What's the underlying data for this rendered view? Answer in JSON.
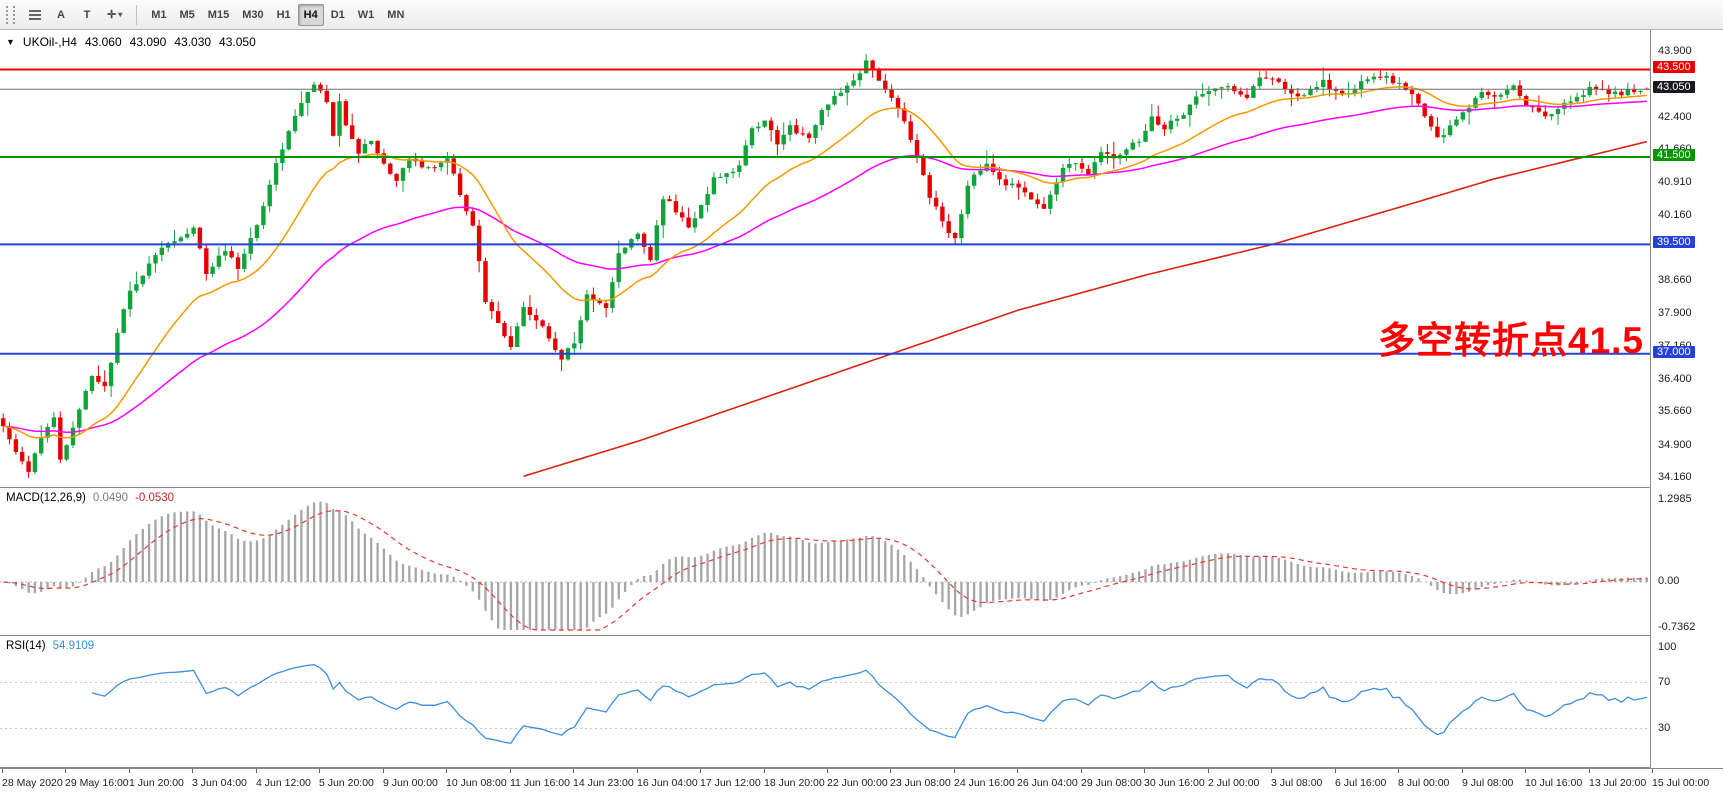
{
  "toolbar": {
    "a_label": "A",
    "t_label": "T",
    "crosshair_glyph": "✛",
    "caret_glyph": "▾",
    "timeframes": [
      "M1",
      "M5",
      "M15",
      "M30",
      "H1",
      "H4",
      "D1",
      "W1",
      "MN"
    ],
    "active_timeframe": "H4"
  },
  "chart": {
    "one_click_arrow": "▼",
    "symbol_title": "UKOil-,H4",
    "quote_open": "43.060",
    "quote_high": "43.090",
    "quote_low": "43.030",
    "quote_close": "43.050"
  },
  "annotation": {
    "text": "多空转折点41.5",
    "color": "#ff0000"
  },
  "levels": [
    {
      "price": 43.5,
      "label": "43.500",
      "color": "#ff0000",
      "width": 2,
      "badge_bg": "#e60000"
    },
    {
      "price": 43.05,
      "label": "43.050",
      "color": "#6e6e6e",
      "width": 1,
      "badge_bg": "#181a20"
    },
    {
      "price": 41.5,
      "label": "41.500",
      "color": "#009600",
      "width": 2,
      "badge_bg": "#009600"
    },
    {
      "price": 39.5,
      "label": "39.500",
      "color": "#2442d8",
      "width": 2,
      "badge_bg": "#2442d8"
    },
    {
      "price": 37.0,
      "label": "37.000",
      "color": "#2442d8",
      "width": 2,
      "badge_bg": "#2442d8"
    }
  ],
  "price_axis_ticks": [
    "43.900",
    "42.400",
    "41.660",
    "40.910",
    "40.160",
    "38.660",
    "37.900",
    "37.160",
    "36.400",
    "35.660",
    "34.900",
    "34.160"
  ],
  "macd": {
    "label": "MACD(12,26,9)",
    "value_main": "0.0490",
    "value_signal": "-0.0530",
    "axis": [
      "1.2985",
      "0.00",
      "-0.7362"
    ]
  },
  "rsi": {
    "label": "RSI(14)",
    "value": "54.9109",
    "axis": [
      "100",
      "70",
      "30"
    ],
    "levels": [
      70,
      30
    ]
  },
  "time_axis_labels": [
    "28 May 2020",
    "29 May 16:00",
    "1 Jun 20:00",
    "3 Jun 04:00",
    "4 Jun 12:00",
    "5 Jun 20:00",
    "9 Jun 00:00",
    "10 Jun 08:00",
    "11 Jun 16:00",
    "14 Jun 23:00",
    "16 Jun 04:00",
    "17 Jun 12:00",
    "18 Jun 20:00",
    "22 Jun 00:00",
    "23 Jun 08:00",
    "24 Jun 16:00",
    "26 Jun 04:00",
    "29 Jun 08:00",
    "30 Jun 16:00",
    "2 Jul 00:00",
    "3 Jul 08:00",
    "6 Jul 16:00",
    "8 Jul 00:00",
    "9 Jul 08:00",
    "10 Jul 16:00",
    "13 Jul 20:00",
    "15 Jul 00:00"
  ],
  "chart_data": {
    "type": "candlestick",
    "symbol": "UKOil-",
    "timeframe": "H4",
    "bars": 260,
    "price_range": [
      34.16,
      43.9
    ],
    "current_bar_ohlc": [
      43.06,
      43.09,
      43.03,
      43.05
    ],
    "close_anchors": [
      [
        0,
        35.3
      ],
      [
        2,
        34.8
      ],
      [
        4,
        34.35
      ],
      [
        6,
        35.1
      ],
      [
        8,
        35.6
      ],
      [
        9,
        34.6
      ],
      [
        11,
        35.3
      ],
      [
        14,
        36.5
      ],
      [
        16,
        36.2
      ],
      [
        18,
        37.5
      ],
      [
        20,
        38.4
      ],
      [
        24,
        39.3
      ],
      [
        28,
        39.7
      ],
      [
        30,
        39.9
      ],
      [
        32,
        38.8
      ],
      [
        35,
        39.4
      ],
      [
        37,
        38.9
      ],
      [
        40,
        40.0
      ],
      [
        43,
        41.3
      ],
      [
        46,
        42.4
      ],
      [
        49,
        43.2
      ],
      [
        51,
        42.8
      ],
      [
        52,
        42.0
      ],
      [
        53,
        42.8
      ],
      [
        54,
        42.2
      ],
      [
        56,
        41.6
      ],
      [
        58,
        41.9
      ],
      [
        60,
        41.3
      ],
      [
        62,
        40.9
      ],
      [
        64,
        41.5
      ],
      [
        67,
        41.2
      ],
      [
        70,
        41.5
      ],
      [
        72,
        40.6
      ],
      [
        74,
        39.9
      ],
      [
        76,
        38.2
      ],
      [
        80,
        37.2
      ],
      [
        82,
        38.1
      ],
      [
        86,
        37.4
      ],
      [
        88,
        36.9
      ],
      [
        90,
        37.3
      ],
      [
        92,
        38.3
      ],
      [
        95,
        38.1
      ],
      [
        97,
        39.3
      ],
      [
        100,
        39.8
      ],
      [
        102,
        39.2
      ],
      [
        104,
        40.6
      ],
      [
        106,
        40.3
      ],
      [
        108,
        39.9
      ],
      [
        110,
        40.4
      ],
      [
        112,
        41.0
      ],
      [
        116,
        41.3
      ],
      [
        118,
        42.1
      ],
      [
        120,
        42.3
      ],
      [
        122,
        41.8
      ],
      [
        124,
        42.2
      ],
      [
        127,
        41.9
      ],
      [
        129,
        42.6
      ],
      [
        132,
        43.0
      ],
      [
        135,
        43.4
      ],
      [
        136,
        43.7
      ],
      [
        139,
        43.1
      ],
      [
        142,
        42.3
      ],
      [
        144,
        41.5
      ],
      [
        146,
        40.6
      ],
      [
        148,
        40.0
      ],
      [
        150,
        39.6
      ],
      [
        152,
        40.9
      ],
      [
        155,
        41.4
      ],
      [
        157,
        41.0
      ],
      [
        162,
        40.6
      ],
      [
        164,
        40.35
      ],
      [
        167,
        41.2
      ],
      [
        169,
        41.4
      ],
      [
        171,
        41.1
      ],
      [
        173,
        41.6
      ],
      [
        176,
        41.5
      ],
      [
        179,
        41.9
      ],
      [
        181,
        42.4
      ],
      [
        183,
        42.2
      ],
      [
        186,
        42.5
      ],
      [
        188,
        42.9
      ],
      [
        190,
        43.0
      ],
      [
        193,
        43.1
      ],
      [
        196,
        42.9
      ],
      [
        198,
        43.35
      ],
      [
        201,
        43.2
      ],
      [
        203,
        42.9
      ],
      [
        206,
        43.0
      ],
      [
        208,
        43.2
      ],
      [
        211,
        42.9
      ],
      [
        213,
        43.1
      ],
      [
        215,
        43.3
      ],
      [
        218,
        43.3
      ],
      [
        221,
        43.1
      ],
      [
        223,
        42.7
      ],
      [
        226,
        41.9
      ],
      [
        228,
        42.2
      ],
      [
        231,
        42.6
      ],
      [
        233,
        43.0
      ],
      [
        236,
        42.9
      ],
      [
        238,
        43.1
      ],
      [
        240,
        42.7
      ],
      [
        243,
        42.4
      ],
      [
        245,
        42.6
      ],
      [
        248,
        42.9
      ],
      [
        251,
        43.1
      ],
      [
        253,
        42.9
      ],
      [
        256,
        43.0
      ],
      [
        259,
        43.05
      ]
    ],
    "ma_fast_period": 21,
    "ma_fast_color": "#f59a00",
    "ma_mid_period": 55,
    "ma_mid_color": "#ff00ff",
    "ma_long_color": "#dd2211",
    "ma_long_anchors": [
      [
        82,
        34.2
      ],
      [
        100,
        35.0
      ],
      [
        120,
        36.0
      ],
      [
        140,
        37.0
      ],
      [
        160,
        38.0
      ],
      [
        180,
        38.8
      ],
      [
        200,
        39.5
      ],
      [
        220,
        40.35
      ],
      [
        235,
        41.0
      ],
      [
        259,
        41.85
      ]
    ],
    "up_color": "#0fa43a",
    "down_color": "#e60000",
    "macd_axis": [
      1.2985,
      0.0,
      -0.7362
    ],
    "macd_histogram_color": "#a6a6a6",
    "macd_signal_color": "#e53935",
    "rsi_color": "#3b8fe0"
  }
}
